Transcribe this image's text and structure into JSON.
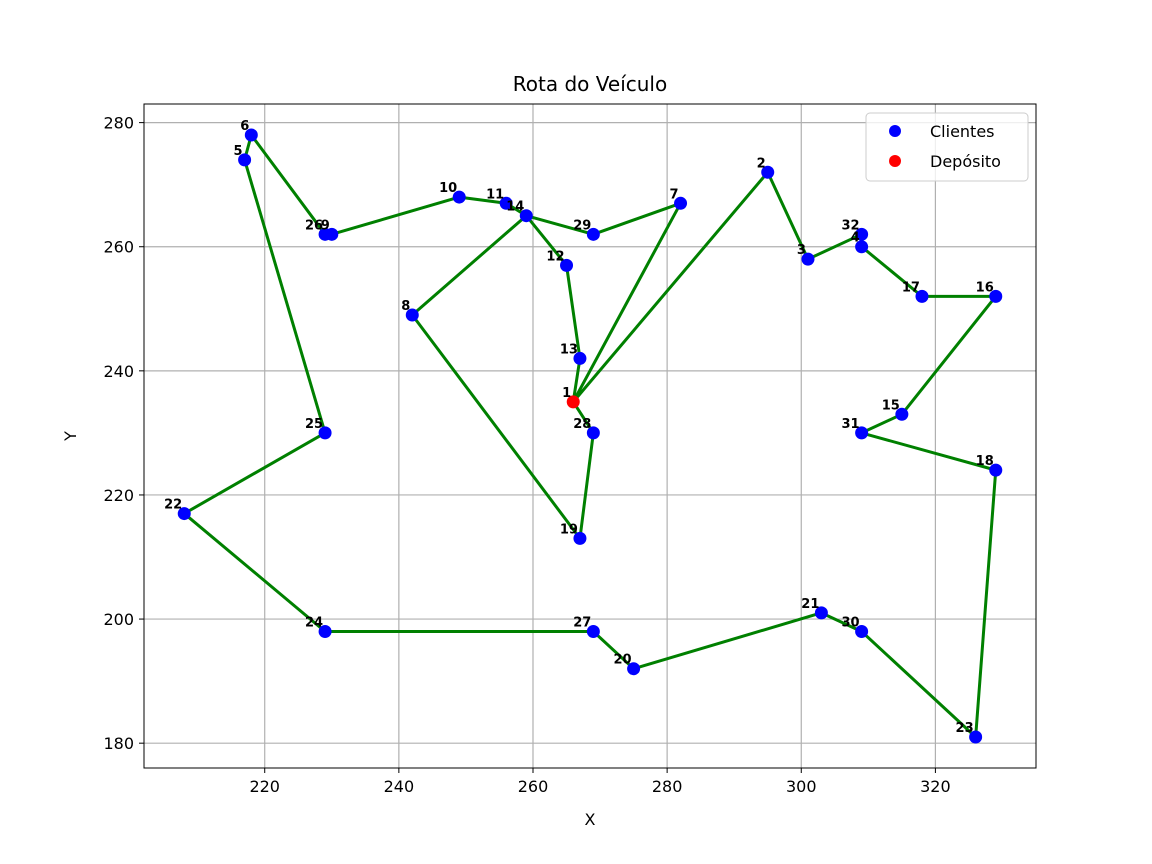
{
  "chart_data": {
    "type": "scatter",
    "title": "Rota do Veículo",
    "xlabel": "X",
    "ylabel": "Y",
    "xlim": [
      202,
      335
    ],
    "ylim": [
      176,
      283
    ],
    "xticks": [
      220,
      240,
      260,
      280,
      300,
      320
    ],
    "yticks": [
      180,
      200,
      220,
      240,
      260,
      280
    ],
    "grid": true,
    "legend_position": "top-right",
    "colors": {
      "clients": "#0000ff",
      "depot": "#ff0000",
      "route": "#008000"
    },
    "legend": [
      {
        "label": "Clientes",
        "color": "#0000ff"
      },
      {
        "label": "Depósito",
        "color": "#ff0000"
      }
    ],
    "depot": {
      "id": "1",
      "x": 266,
      "y": 235
    },
    "clients": [
      {
        "id": "2",
        "x": 295,
        "y": 272
      },
      {
        "id": "3",
        "x": 301,
        "y": 258
      },
      {
        "id": "4",
        "x": 309,
        "y": 260
      },
      {
        "id": "5",
        "x": 217,
        "y": 274
      },
      {
        "id": "6",
        "x": 218,
        "y": 278
      },
      {
        "id": "7",
        "x": 282,
        "y": 267
      },
      {
        "id": "8",
        "x": 242,
        "y": 249
      },
      {
        "id": "9",
        "x": 230,
        "y": 262
      },
      {
        "id": "10",
        "x": 249,
        "y": 268
      },
      {
        "id": "11",
        "x": 256,
        "y": 267
      },
      {
        "id": "12",
        "x": 265,
        "y": 257
      },
      {
        "id": "13",
        "x": 267,
        "y": 242
      },
      {
        "id": "14",
        "x": 259,
        "y": 265
      },
      {
        "id": "15",
        "x": 315,
        "y": 233
      },
      {
        "id": "16",
        "x": 329,
        "y": 252
      },
      {
        "id": "17",
        "x": 318,
        "y": 252
      },
      {
        "id": "18",
        "x": 329,
        "y": 224
      },
      {
        "id": "19",
        "x": 267,
        "y": 213
      },
      {
        "id": "20",
        "x": 275,
        "y": 192
      },
      {
        "id": "21",
        "x": 303,
        "y": 201
      },
      {
        "id": "22",
        "x": 208,
        "y": 217
      },
      {
        "id": "23",
        "x": 326,
        "y": 181
      },
      {
        "id": "24",
        "x": 229,
        "y": 198
      },
      {
        "id": "25",
        "x": 229,
        "y": 230
      },
      {
        "id": "26",
        "x": 229,
        "y": 262
      },
      {
        "id": "27",
        "x": 269,
        "y": 198
      },
      {
        "id": "28",
        "x": 269,
        "y": 230
      },
      {
        "id": "29",
        "x": 269,
        "y": 262
      },
      {
        "id": "30",
        "x": 309,
        "y": 198
      },
      {
        "id": "31",
        "x": 309,
        "y": 230
      },
      {
        "id": "32",
        "x": 309,
        "y": 262
      }
    ],
    "route": [
      "1",
      "7",
      "29",
      "14",
      "11",
      "10",
      "9",
      "26",
      "6",
      "5",
      "25",
      "22",
      "24",
      "27",
      "20",
      "21",
      "30",
      "23",
      "18",
      "31",
      "15",
      "16",
      "17",
      "4",
      "32",
      "3",
      "2",
      "1",
      "13",
      "12",
      "14",
      "8",
      "19",
      "28",
      "1"
    ]
  }
}
